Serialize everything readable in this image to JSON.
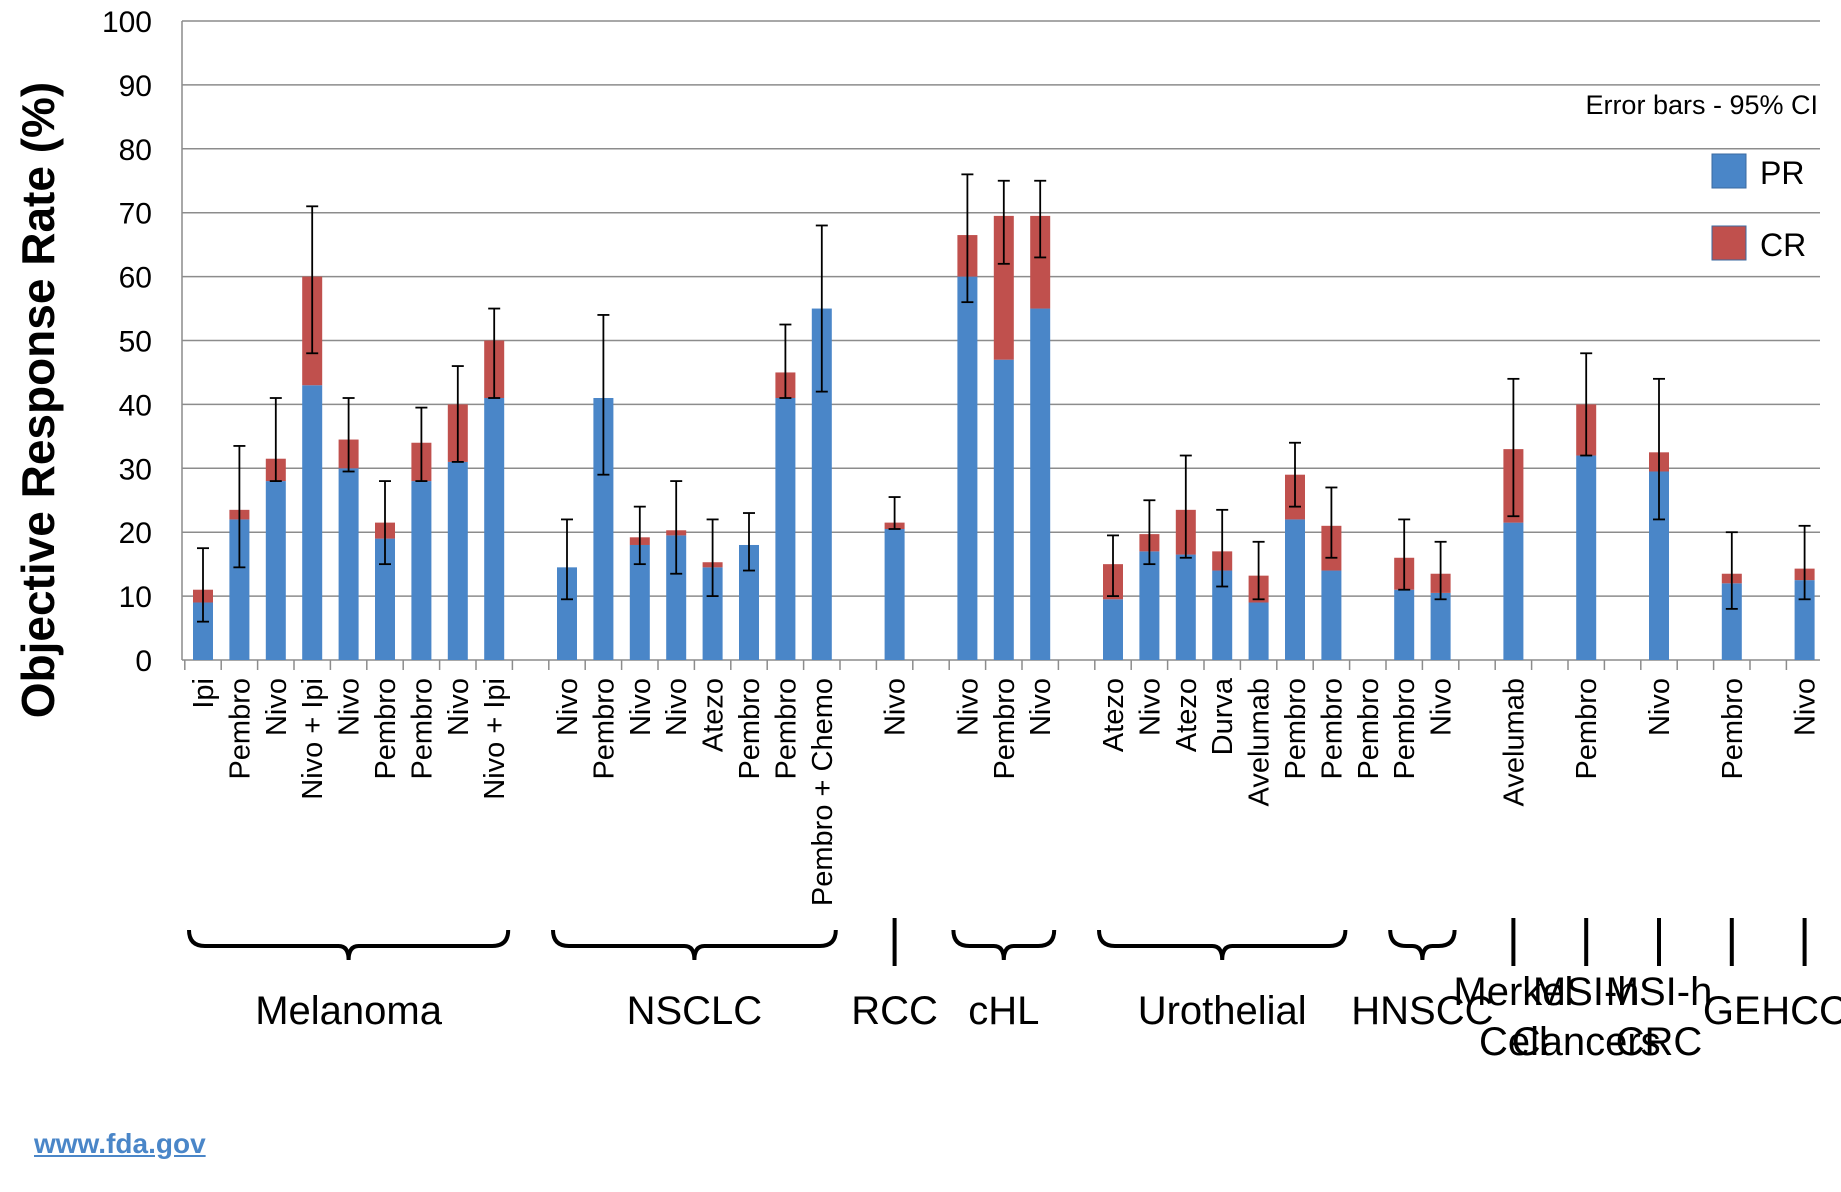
{
  "chart_data": {
    "type": "bar",
    "stacked": true,
    "ylabel": "Objective Response Rate (%)",
    "ylim": [
      0,
      100
    ],
    "yticks": [
      0,
      10,
      20,
      30,
      40,
      50,
      60,
      70,
      80,
      90,
      100
    ],
    "grid": true,
    "legend_position": "top-right",
    "note": "Error bars - 95% CI",
    "colors": {
      "pr": "#4a86c8",
      "cr": "#c0504d",
      "grid": "#8c8c8c",
      "error": "#000000"
    },
    "series": [
      {
        "name": "PR",
        "color": "#4a86c8"
      },
      {
        "name": "CR",
        "color": "#c0504d"
      }
    ],
    "bars": [
      {
        "label": "Ipi",
        "slot": 0,
        "pr": 9,
        "cr": 2,
        "ci_low": 6,
        "ci_high": 17.5
      },
      {
        "label": "Pembro",
        "slot": 1,
        "pr": 22,
        "cr": 1.5,
        "ci_low": 14.5,
        "ci_high": 33.5
      },
      {
        "label": "Nivo",
        "slot": 2,
        "pr": 28,
        "cr": 3.5,
        "ci_low": 28,
        "ci_high": 41
      },
      {
        "label": "Nivo + Ipi",
        "slot": 3,
        "pr": 43,
        "cr": 17,
        "ci_low": 48,
        "ci_high": 71
      },
      {
        "label": "Nivo",
        "slot": 4,
        "pr": 30,
        "cr": 4.5,
        "ci_low": 29.5,
        "ci_high": 41
      },
      {
        "label": "Pembro",
        "slot": 5,
        "pr": 19,
        "cr": 2.5,
        "ci_low": 15,
        "ci_high": 28
      },
      {
        "label": "Pembro",
        "slot": 6,
        "pr": 28,
        "cr": 6,
        "ci_low": 28,
        "ci_high": 39.5
      },
      {
        "label": "Nivo",
        "slot": 7,
        "pr": 31,
        "cr": 9,
        "ci_low": 31,
        "ci_high": 46
      },
      {
        "label": "Nivo + Ipi",
        "slot": 8,
        "pr": 41,
        "cr": 9,
        "ci_low": 41,
        "ci_high": 55
      },
      {
        "label": "Nivo",
        "slot": 10,
        "pr": 14.5,
        "cr": 0,
        "ci_low": 9.5,
        "ci_high": 22
      },
      {
        "label": "Pembro",
        "slot": 11,
        "pr": 41,
        "cr": 0,
        "ci_low": 29,
        "ci_high": 54
      },
      {
        "label": "Nivo",
        "slot": 12,
        "pr": 18,
        "cr": 1.2,
        "ci_low": 15,
        "ci_high": 24
      },
      {
        "label": "Nivo",
        "slot": 13,
        "pr": 19.5,
        "cr": 0.8,
        "ci_low": 13.5,
        "ci_high": 28
      },
      {
        "label": "Atezo",
        "slot": 14,
        "pr": 14.5,
        "cr": 0.8,
        "ci_low": 10,
        "ci_high": 22
      },
      {
        "label": "Pembro",
        "slot": 15,
        "pr": 18,
        "cr": 0,
        "ci_low": 14,
        "ci_high": 23
      },
      {
        "label": "Pembro",
        "slot": 16,
        "pr": 41,
        "cr": 4,
        "ci_low": 41,
        "ci_high": 52.5
      },
      {
        "label": "Pembro + Chemo",
        "slot": 17,
        "pr": 55,
        "cr": 0,
        "ci_low": 42,
        "ci_high": 68
      },
      {
        "label": "Nivo",
        "slot": 19,
        "pr": 20.5,
        "cr": 1,
        "ci_low": 20.5,
        "ci_high": 25.5
      },
      {
        "label": "Nivo",
        "slot": 21,
        "pr": 60,
        "cr": 6.5,
        "ci_low": 56,
        "ci_high": 76
      },
      {
        "label": "Pembro",
        "slot": 22,
        "pr": 47,
        "cr": 22.5,
        "ci_low": 62,
        "ci_high": 75
      },
      {
        "label": "Nivo",
        "slot": 23,
        "pr": 55,
        "cr": 14.5,
        "ci_low": 63,
        "ci_high": 75
      },
      {
        "label": "Atezo",
        "slot": 25,
        "pr": 9.5,
        "cr": 5.5,
        "ci_low": 10,
        "ci_high": 19.5
      },
      {
        "label": "Nivo",
        "slot": 26,
        "pr": 17,
        "cr": 2.7,
        "ci_low": 15,
        "ci_high": 25
      },
      {
        "label": "Atezo",
        "slot": 27,
        "pr": 16.5,
        "cr": 7,
        "ci_low": 16,
        "ci_high": 32
      },
      {
        "label": "Durva",
        "slot": 28,
        "pr": 14,
        "cr": 3,
        "ci_low": 11.5,
        "ci_high": 23.5
      },
      {
        "label": "Avelumab",
        "slot": 29,
        "pr": 9,
        "cr": 4.2,
        "ci_low": 9.5,
        "ci_high": 18.5
      },
      {
        "label": "Pembro",
        "slot": 30,
        "pr": 22,
        "cr": 7,
        "ci_low": 24,
        "ci_high": 34
      },
      {
        "label": "Pembro",
        "slot": 31,
        "pr": 14,
        "cr": 7,
        "ci_low": 16,
        "ci_high": 27
      },
      {
        "label": "Pembro",
        "slot": 33,
        "pr": 11,
        "cr": 5,
        "ci_low": 11,
        "ci_high": 22
      },
      {
        "label": "Nivo",
        "slot": 34,
        "pr": 10.5,
        "cr": 3,
        "ci_low": 9.5,
        "ci_high": 18.5
      },
      {
        "label": "Avelumab",
        "slot": 36,
        "pr": 21.5,
        "cr": 11.5,
        "ci_low": 22.5,
        "ci_high": 44
      },
      {
        "label": "Pembro",
        "slot": 38,
        "pr": 32,
        "cr": 8,
        "ci_low": 32,
        "ci_high": 48
      },
      {
        "label": "Nivo",
        "slot": 40,
        "pr": 29.5,
        "cr": 3,
        "ci_low": 22,
        "ci_high": 44
      },
      {
        "label": "Pembro",
        "slot": 42,
        "pr": 12,
        "cr": 1.5,
        "ci_low": 8,
        "ci_high": 20
      },
      {
        "label": "Nivo",
        "slot": 44,
        "pr": 12.5,
        "cr": 1.8,
        "ci_low": 9.5,
        "ci_high": 21
      }
    ],
    "empty_ticks": [
      {
        "label": "Pembro",
        "slot": 32
      }
    ],
    "groups": [
      {
        "name": [
          "Melanoma"
        ],
        "bracket": "curly",
        "from_slot": 0,
        "to_slot": 8
      },
      {
        "name": [
          "NSCLC"
        ],
        "bracket": "curly",
        "from_slot": 10,
        "to_slot": 17
      },
      {
        "name": [
          "RCC"
        ],
        "bracket": "line",
        "from_slot": 19,
        "to_slot": 19
      },
      {
        "name": [
          "cHL"
        ],
        "bracket": "curly",
        "from_slot": 21,
        "to_slot": 23
      },
      {
        "name": [
          "Urothelial"
        ],
        "bracket": "curly",
        "from_slot": 25,
        "to_slot": 31
      },
      {
        "name": [
          "HNSCC"
        ],
        "bracket": "curly",
        "from_slot": 33,
        "to_slot": 34
      },
      {
        "name": [
          "Merkel",
          "Cell"
        ],
        "bracket": "line",
        "from_slot": 36,
        "to_slot": 36
      },
      {
        "name": [
          "MSI-h",
          "Cancers"
        ],
        "bracket": "line",
        "from_slot": 38,
        "to_slot": 38
      },
      {
        "name": [
          "MSI-h",
          "CRC"
        ],
        "bracket": "line",
        "from_slot": 40,
        "to_slot": 40
      },
      {
        "name": [
          "GE"
        ],
        "bracket": "line",
        "from_slot": 42,
        "to_slot": 42
      },
      {
        "name": [
          "HCC"
        ],
        "bracket": "line",
        "from_slot": 44,
        "to_slot": 44
      }
    ]
  },
  "footer": {
    "source_link": "www.fda.gov"
  }
}
